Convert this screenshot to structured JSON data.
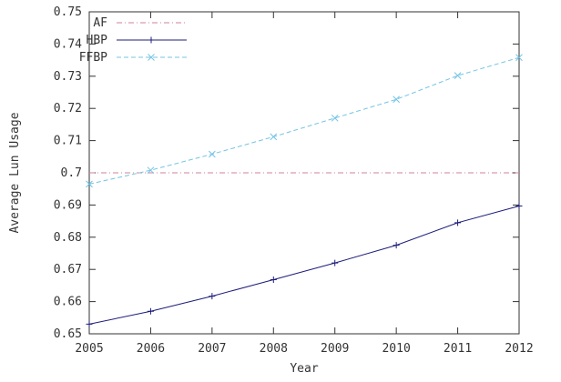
{
  "chart_data": {
    "type": "line",
    "x_label": "Year",
    "y_label": "Average Lun Usage",
    "x": [
      2005,
      2006,
      2007,
      2008,
      2009,
      2010,
      2011,
      2012
    ],
    "xlim": [
      2005,
      2012
    ],
    "xticks": [
      2005,
      2006,
      2007,
      2008,
      2009,
      2010,
      2011,
      2012
    ],
    "ylim": [
      0.65,
      0.75
    ],
    "yticks": [
      0.65,
      0.66,
      0.67,
      0.68,
      0.69,
      0.7,
      0.71,
      0.72,
      0.73,
      0.74,
      0.75
    ],
    "legend": "top-left",
    "series": [
      {
        "name": "AF",
        "color": "#d0809a",
        "dash": "dashdot",
        "marker": "none",
        "values": [
          0.7,
          0.7,
          0.7,
          0.7,
          0.7,
          0.7,
          0.7,
          0.7
        ]
      },
      {
        "name": "HBP",
        "color": "#1c1c7a",
        "dash": "solid",
        "marker": "plus",
        "values": [
          0.653,
          0.657,
          0.6617,
          0.6668,
          0.672,
          0.6775,
          0.6845,
          0.6897
        ]
      },
      {
        "name": "FFBP",
        "color": "#74c4e4",
        "dash": "dashed",
        "marker": "cross",
        "values": [
          0.6965,
          0.7008,
          0.7058,
          0.7112,
          0.717,
          0.7228,
          0.7302,
          0.7358
        ]
      }
    ]
  }
}
